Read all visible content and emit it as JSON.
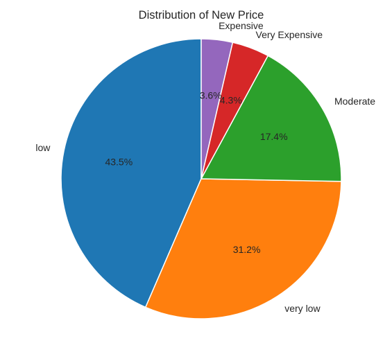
{
  "chart_data": {
    "type": "pie",
    "title": "Distribution of New Price",
    "categories": [
      "low",
      "very low",
      "Moderate",
      "Very Expensive",
      "Expensive"
    ],
    "values": [
      43.5,
      31.2,
      17.4,
      4.3,
      3.6
    ],
    "percent_labels": [
      "43.5%",
      "31.2%",
      "17.4%",
      "4.3%",
      "3.6%"
    ],
    "colors": [
      "#1f77b4",
      "#ff7f0e",
      "#2ca02c",
      "#d62728",
      "#9467bd"
    ],
    "start_angle_deg": 90,
    "direction": "counterclockwise",
    "legend": "none"
  }
}
